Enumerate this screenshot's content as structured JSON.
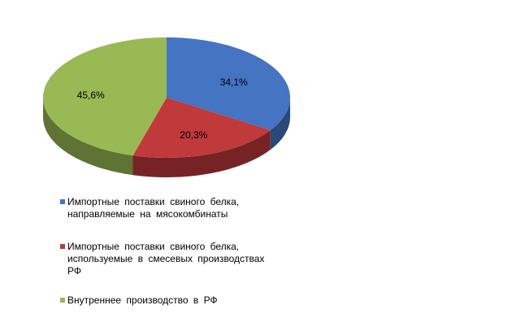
{
  "chart_data": {
    "type": "pie",
    "labels": [
      "Импортные поставки свиного белка, направляемые на мясокомбинаты",
      "Импортные поставки свиного белка, используемые в смесевых производствах РФ",
      "Внутреннее производство в РФ"
    ],
    "values": [
      34.1,
      20.3,
      45.6
    ],
    "value_labels": [
      "34,1%",
      "20,3%",
      "45,6%"
    ],
    "colors": [
      "#4474c2",
      "#c0393b",
      "#98b954"
    ]
  }
}
